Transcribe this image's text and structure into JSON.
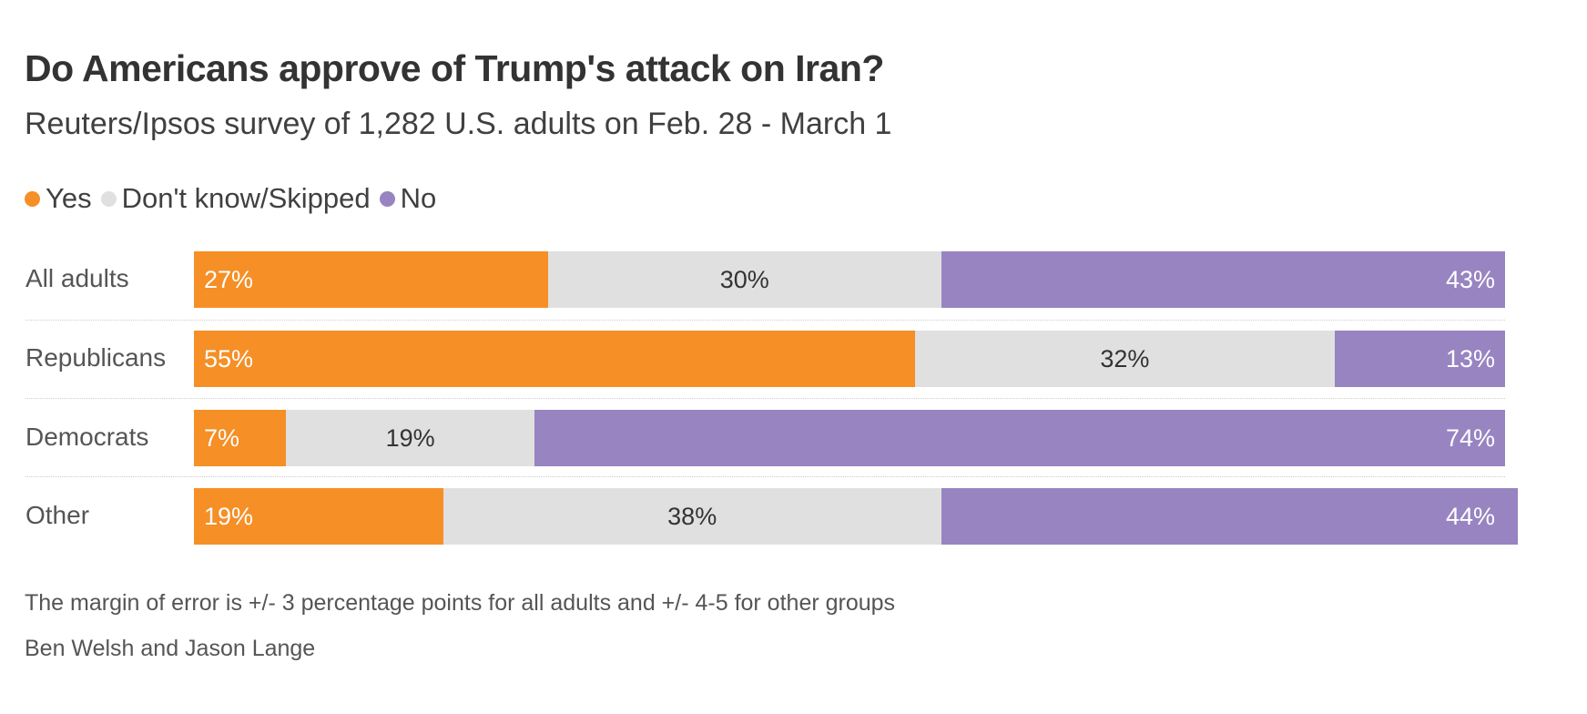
{
  "title": "Do Americans approve of Trump's attack on Iran?",
  "subtitle": "Reuters/Ipsos survey of 1,282 U.S. adults on Feb. 28 - March 1",
  "footnote": "The margin of error is +/- 3 percentage points for all adults and +/- 4-5 for other groups",
  "credits": "Ben Welsh and Jason Lange",
  "chart_data": {
    "type": "bar",
    "orientation": "horizontal-stacked-100",
    "categories": [
      "All adults",
      "Republicans",
      "Democrats",
      "Other"
    ],
    "series": [
      {
        "name": "Yes",
        "color": "#F58F26",
        "values": [
          27,
          55,
          7,
          19
        ]
      },
      {
        "name": "Don't know/Skipped",
        "color": "#E0E0E0",
        "values": [
          30,
          32,
          19,
          38
        ]
      },
      {
        "name": "No",
        "color": "#9784C1",
        "values": [
          43,
          13,
          74,
          44
        ]
      }
    ],
    "value_suffix": "%",
    "legend": "top-left",
    "xlim": [
      0,
      100
    ]
  }
}
